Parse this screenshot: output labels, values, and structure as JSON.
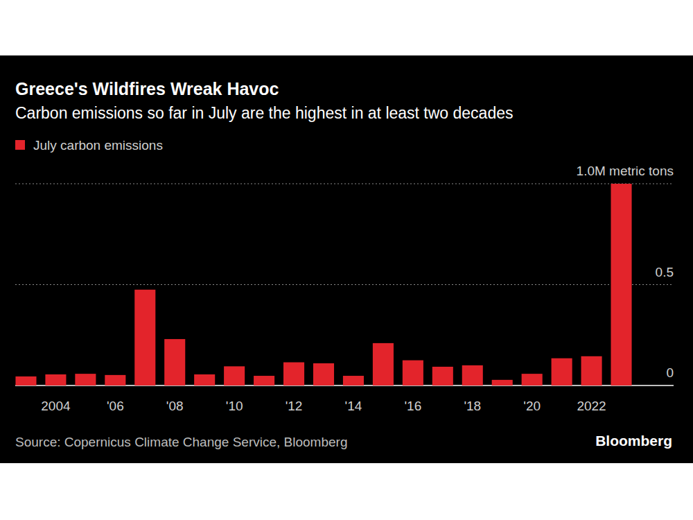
{
  "chart_data": {
    "type": "bar",
    "title": "Greece's Wildfires Wreak Havoc",
    "subtitle": "Carbon emissions so far in July are the highest in at least two decades",
    "source": "Source: Copernicus Climate Change Service, Bloomberg",
    "credit": "Bloomberg",
    "categories": [
      null,
      "2004",
      null,
      "'06",
      null,
      "'08",
      null,
      "'10",
      null,
      "'12",
      null,
      "'14",
      null,
      "'16",
      null,
      "'18",
      null,
      "'20",
      null,
      "2022",
      null
    ],
    "series": [
      {
        "name": "July carbon emissions",
        "color": "#e3242b",
        "values": [
          0.045,
          0.055,
          0.058,
          0.052,
          0.475,
          0.23,
          0.055,
          0.095,
          0.048,
          0.115,
          0.11,
          0.048,
          0.21,
          0.125,
          0.093,
          0.1,
          0.028,
          0.058,
          0.135,
          0.145,
          1.0
        ]
      }
    ],
    "ylim": [
      0,
      1.0
    ],
    "yticks": [
      0,
      0.5,
      {
        "value": 1.0,
        "label": "1.0M metric tons"
      }
    ],
    "grid": true,
    "legend": "top-left"
  }
}
